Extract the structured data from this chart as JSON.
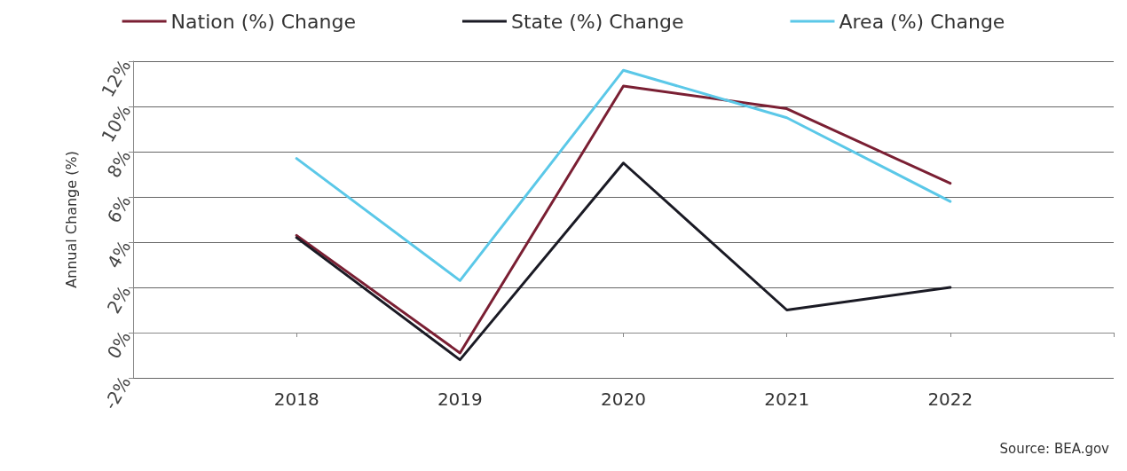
{
  "chart_data": {
    "type": "line",
    "ylabel": "Annual Change (%)",
    "categories": [
      null,
      "2018",
      "2019",
      "2020",
      "2021",
      "2022",
      null
    ],
    "series": [
      {
        "name": "Nation (%) Change",
        "color": "#7a1f33",
        "values": [
          null,
          4.3,
          -0.9,
          10.9,
          9.9,
          6.6,
          null
        ]
      },
      {
        "name": "State (%) Change",
        "color": "#1a1a24",
        "values": [
          null,
          4.2,
          -1.2,
          7.5,
          1.0,
          2.0,
          null
        ]
      },
      {
        "name": "Area (%) Change",
        "color": "#5bc8e8",
        "values": [
          null,
          7.7,
          2.3,
          11.6,
          9.5,
          5.8,
          null
        ]
      }
    ],
    "ylim": [
      -2,
      12
    ],
    "yticks": [
      {
        "value": -2,
        "label": "-2%"
      },
      {
        "value": 0,
        "label": "0%"
      },
      {
        "value": 2,
        "label": "2%"
      },
      {
        "value": 4,
        "label": "4%"
      },
      {
        "value": 6,
        "label": "6%"
      },
      {
        "value": 8,
        "label": "8%"
      },
      {
        "value": 10,
        "label": "10%"
      },
      {
        "value": 12,
        "label": "12%"
      }
    ],
    "grid": "y",
    "legend": "top",
    "marker": "none",
    "line_style": "solid",
    "annotations": [
      "Source: BEA.gov"
    ]
  }
}
